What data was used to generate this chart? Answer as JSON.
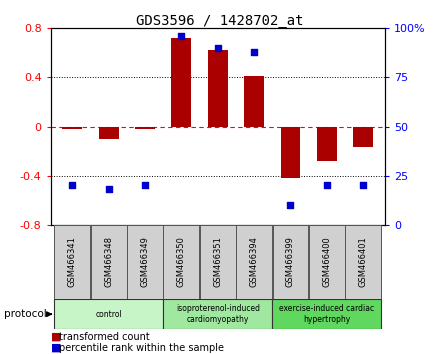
{
  "title": "GDS3596 / 1428702_at",
  "samples": [
    "GSM466341",
    "GSM466348",
    "GSM466349",
    "GSM466350",
    "GSM466351",
    "GSM466394",
    "GSM466399",
    "GSM466400",
    "GSM466401"
  ],
  "transformed_count": [
    -0.02,
    -0.1,
    -0.02,
    0.72,
    0.62,
    0.41,
    -0.42,
    -0.28,
    -0.17
  ],
  "percentile_rank": [
    20,
    18,
    20,
    96,
    90,
    88,
    10,
    20,
    20
  ],
  "groups": [
    {
      "label": "control",
      "indices": [
        0,
        1,
        2
      ],
      "color": "#c8f5c8"
    },
    {
      "label": "isoproterenol-induced\ncardiomyopathy",
      "indices": [
        3,
        4,
        5
      ],
      "color": "#a0e8a0"
    },
    {
      "label": "exercise-induced cardiac\nhypertrophy",
      "indices": [
        6,
        7,
        8
      ],
      "color": "#60d860"
    }
  ],
  "bar_color": "#aa0000",
  "dot_color": "#0000cc",
  "left_ylim": [
    -0.8,
    0.8
  ],
  "right_ylim": [
    0,
    100
  ],
  "left_yticks": [
    -0.8,
    -0.4,
    0.0,
    0.4,
    0.8
  ],
  "left_yticklabels": [
    "-0.8",
    "-0.4",
    "0",
    "0.4",
    "0.8"
  ],
  "right_yticks": [
    0,
    25,
    50,
    75,
    100
  ],
  "right_yticklabels": [
    "0",
    "25",
    "50",
    "75",
    "100%"
  ],
  "dotted_line_vals": [
    -0.4,
    0.4
  ],
  "background_color": "#ffffff",
  "plot_bg": "#ffffff"
}
